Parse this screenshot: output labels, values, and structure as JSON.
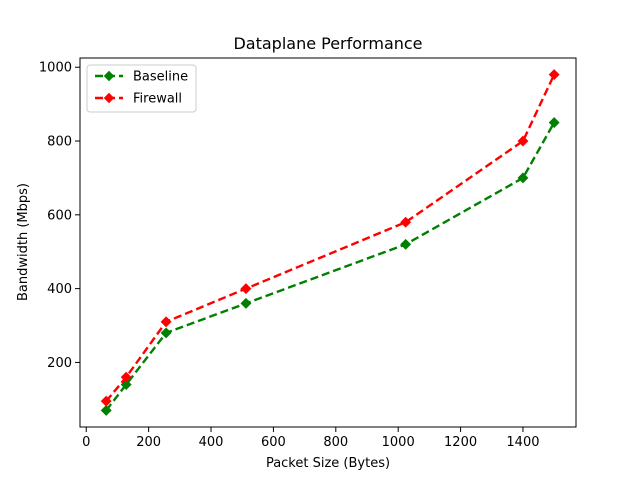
{
  "chart_data": {
    "type": "line",
    "title": "Dataplane Performance",
    "xlabel": "Packet Size (Bytes)",
    "ylabel": "Bandwidth (Mbps)",
    "xlim": [
      -20,
      1570
    ],
    "ylim": [
      25,
      1025
    ],
    "xticks": [
      0,
      200,
      400,
      600,
      800,
      1000,
      1200,
      1400
    ],
    "yticks": [
      200,
      400,
      600,
      800,
      1000
    ],
    "grid": false,
    "legend": "top-left",
    "x": [
      64,
      128,
      256,
      512,
      1024,
      1400,
      1500
    ],
    "series": [
      {
        "name": "Baseline",
        "color": "#008000",
        "marker": "diamond",
        "line_style": "dashed",
        "values": [
          70,
          140,
          280,
          360,
          520,
          700,
          850
        ]
      },
      {
        "name": "Firewall",
        "color": "#ff0000",
        "marker": "diamond",
        "line_style": "dashed",
        "values": [
          95,
          160,
          310,
          400,
          580,
          800,
          980
        ]
      }
    ]
  }
}
